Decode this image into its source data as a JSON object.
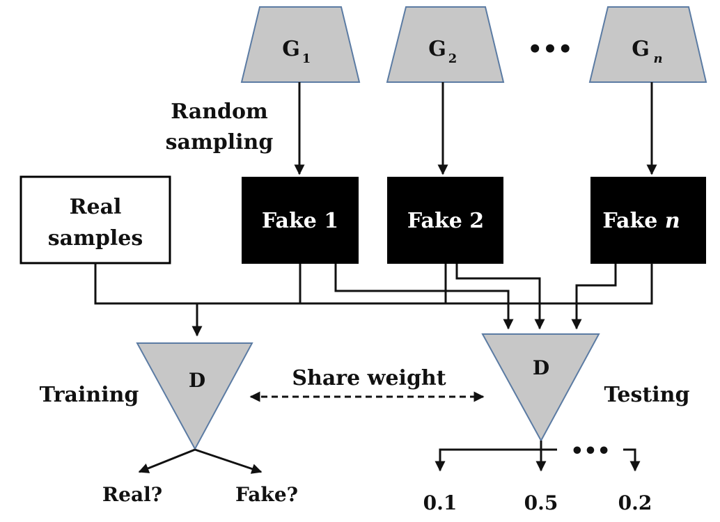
{
  "generators": [
    {
      "name": "G",
      "sub": "1"
    },
    {
      "name": "G",
      "sub": "2"
    },
    {
      "name": "G",
      "sub": "n"
    }
  ],
  "ellipsis": "•••",
  "random_sampling": [
    "Random",
    "sampling"
  ],
  "real_samples": [
    "Real",
    "samples"
  ],
  "fakes": [
    "Fake 1",
    "Fake 2",
    "Fake"
  ],
  "fake_n_italic": "n",
  "discriminator_label": "D",
  "training_label": "Training",
  "testing_label": "Testing",
  "share_weight_label": "Share weight",
  "train_outputs": [
    "Real?",
    "Fake?"
  ],
  "test_outputs": [
    "0.1",
    "0.5",
    "0.2"
  ],
  "colors": {
    "shape_fill": "#c7c7c7",
    "shape_stroke": "#5b7ba3",
    "box_fill": "#000000"
  }
}
